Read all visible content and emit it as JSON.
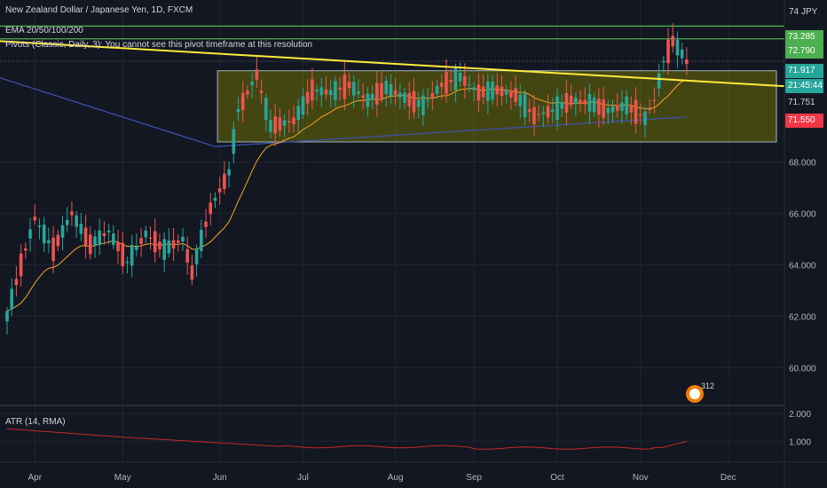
{
  "header": {
    "title": "New Zealand Dollar / Japanese Yen, 1D, FXCM",
    "ema_label": "EMA 20/50/100/200",
    "pivots_label": "Pivots (Classic, Daily, 3): You cannot see this pivot timeframe at this resolution",
    "currency": "JPY",
    "top_tick": "74"
  },
  "atr": {
    "label": "ATR (14, RMA)",
    "ticks": [
      "2.000",
      "1.000"
    ]
  },
  "badge": {
    "count": "312"
  },
  "price_tags": [
    {
      "text": "73.285",
      "bg": "#4caf50",
      "fg": "#ffffff"
    },
    {
      "text": "72.790",
      "bg": "#4caf50",
      "fg": "#ffffff"
    },
    {
      "text": "71.917",
      "bg": "#26a69a",
      "fg": "#ffffff"
    },
    {
      "text": "21:45:44",
      "bg": "#26a69a",
      "fg": "#ffffff"
    },
    {
      "text": "71.751",
      "bg": "#131722",
      "fg": "#d1d4dc"
    },
    {
      "text": "71.550",
      "bg": "#f23645",
      "fg": "#ffffff"
    }
  ],
  "chart_data": {
    "type": "candlestick",
    "title": "New Zealand Dollar / Japanese Yen, 1D, FXCM",
    "y_ticks": [
      "68.000",
      "66.000",
      "64.000",
      "62.000",
      "60.000"
    ],
    "x_ticks": [
      "Apr",
      "May",
      "Jun",
      "Jul",
      "Aug",
      "Sep",
      "Oct",
      "Nov",
      "Dec"
    ],
    "ylim": [
      58.6,
      74.3
    ],
    "colors": {
      "up": "#26a69a",
      "down": "#ef5350",
      "trendline": "#ffeb3b",
      "range_box": "#808000",
      "ema_orange": "#f5a623",
      "ema_blue": "#3f51b5",
      "atr": "#c62828",
      "level_green": "#4caf50"
    },
    "horizontal_levels": [
      73.285,
      72.79,
      71.917
    ],
    "range_box": {
      "x_start": "Jun",
      "x_end": "Nov",
      "y_low": 68.78,
      "y_high": 71.55
    },
    "trendline": {
      "start_y": 72.7,
      "end_y": 70.95
    },
    "ohlc_anchors": [
      [
        0,
        62.0
      ],
      [
        3,
        64.0
      ],
      [
        6,
        65.8
      ],
      [
        10,
        64.6
      ],
      [
        14,
        66.0
      ],
      [
        18,
        64.8
      ],
      [
        22,
        65.3
      ],
      [
        26,
        64.1
      ],
      [
        30,
        65.2
      ],
      [
        34,
        64.6
      ],
      [
        38,
        65.0
      ],
      [
        40,
        63.7
      ],
      [
        44,
        66.2
      ],
      [
        48,
        67.6
      ],
      [
        50,
        70.0
      ],
      [
        54,
        71.4
      ],
      [
        57,
        69.4
      ],
      [
        62,
        69.6
      ],
      [
        66,
        70.8
      ],
      [
        70,
        70.7
      ],
      [
        74,
        71.0
      ],
      [
        78,
        70.4
      ],
      [
        82,
        70.9
      ],
      [
        86,
        70.5
      ],
      [
        90,
        70.2
      ],
      [
        94,
        71.0
      ],
      [
        98,
        71.3
      ],
      [
        102,
        70.7
      ],
      [
        106,
        70.8
      ],
      [
        110,
        70.6
      ],
      [
        114,
        69.8
      ],
      [
        118,
        70.0
      ],
      [
        122,
        70.4
      ],
      [
        126,
        70.3
      ],
      [
        130,
        70.0
      ],
      [
        134,
        70.2
      ],
      [
        138,
        69.7
      ],
      [
        140,
        70.4
      ],
      [
        142,
        71.9
      ],
      [
        144,
        72.7
      ],
      [
        146,
        72.2
      ],
      [
        147,
        71.9
      ]
    ]
  }
}
